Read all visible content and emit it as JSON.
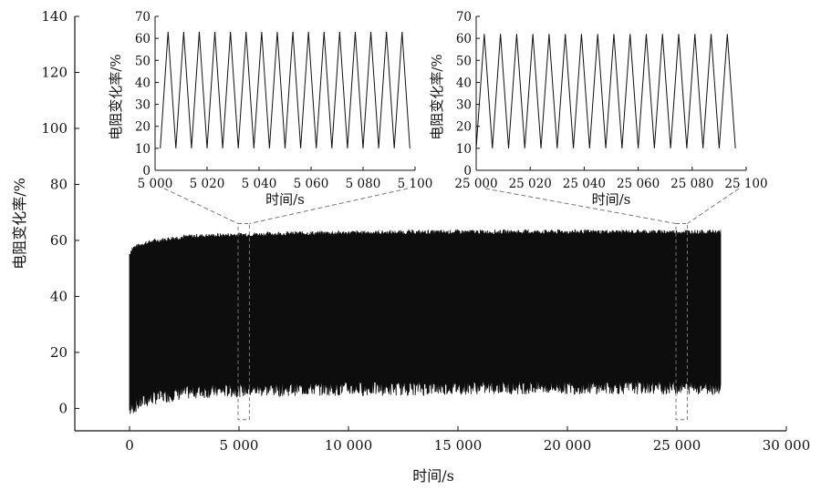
{
  "chart_data": [
    {
      "type": "line",
      "name": "main",
      "xlabel": "时间/s",
      "ylabel": "电阻变化率/%",
      "xlim": [
        -2500,
        30000
      ],
      "ylim": [
        -8,
        140
      ],
      "xticks": [
        0,
        5000,
        10000,
        15000,
        20000,
        25000,
        30000
      ],
      "xtick_labels": [
        "0",
        "5 000",
        "10 000",
        "15 000",
        "20 000",
        "25 000",
        "30 000"
      ],
      "yticks": [
        0,
        20,
        40,
        60,
        80,
        100,
        120,
        140
      ],
      "ytick_labels": [
        "0",
        "20",
        "40",
        "60",
        "80",
        "100",
        "120",
        "140"
      ],
      "grid": false,
      "series": [
        {
          "description": "dense cyclic resistance-change signal, upper/lower envelope",
          "x": [
            0,
            100,
            500,
            1000,
            2000,
            3000,
            5000,
            8000,
            12000,
            16000,
            20000,
            24000,
            27000
          ],
          "upper": [
            55,
            57,
            58.5,
            59.5,
            60.8,
            61.5,
            62,
            62.5,
            62.8,
            63,
            63,
            63,
            63
          ],
          "lower": [
            0,
            1,
            3,
            4.5,
            6,
            7,
            7.5,
            8,
            8,
            8.5,
            8.5,
            8.5,
            8.5
          ]
        }
      ],
      "zoom_windows": [
        {
          "x0": 5000,
          "x1": 5100,
          "inset": 0
        },
        {
          "x0": 25000,
          "x1": 25100,
          "inset": 1
        }
      ]
    },
    {
      "type": "line",
      "name": "inset-1",
      "xlabel": "时间/s",
      "ylabel": "电阻变化率/%",
      "xlim": [
        5000,
        5100
      ],
      "ylim": [
        0,
        70
      ],
      "xticks": [
        5000,
        5020,
        5040,
        5060,
        5080,
        5100
      ],
      "xtick_labels": [
        "5 000",
        "5 020",
        "5 040",
        "5 060",
        "5 080",
        "5 100"
      ],
      "yticks": [
        0,
        10,
        20,
        30,
        40,
        50,
        60,
        70
      ],
      "ytick_labels": [
        "0",
        "10",
        "20",
        "30",
        "40",
        "50",
        "60",
        "70"
      ],
      "series": [
        {
          "description": "triangular wave, 16 peaks",
          "x": [
            5002,
            5005,
            5008,
            5011,
            5014,
            5017,
            5020,
            5023,
            5026,
            5029,
            5032,
            5035,
            5038,
            5041,
            5044,
            5047,
            5050,
            5053,
            5056,
            5059,
            5062,
            5065,
            5068,
            5071,
            5074,
            5077,
            5080,
            5083,
            5086,
            5089,
            5092,
            5095,
            5098
          ],
          "y": [
            10,
            63,
            10,
            63,
            10,
            63,
            10,
            63,
            10,
            63,
            10,
            63,
            10,
            63,
            10,
            63,
            10,
            63,
            10,
            63,
            10,
            63,
            10,
            63,
            10,
            63,
            10,
            63,
            10,
            63,
            10,
            63,
            10
          ]
        }
      ]
    },
    {
      "type": "line",
      "name": "inset-2",
      "xlabel": "时间/s",
      "ylabel": "电阻变化率/%",
      "xlim": [
        25000,
        25100
      ],
      "ylim": [
        0,
        70
      ],
      "xticks": [
        25000,
        25020,
        25040,
        25060,
        25080,
        25100
      ],
      "xtick_labels": [
        "25 000",
        "25 020",
        "25 040",
        "25 060",
        "25 080",
        "25 100"
      ],
      "yticks": [
        0,
        10,
        20,
        30,
        40,
        50,
        60,
        70
      ],
      "ytick_labels": [
        "0",
        "10",
        "20",
        "30",
        "40",
        "50",
        "60",
        "70"
      ],
      "series": [
        {
          "description": "triangular wave, 16 peaks",
          "x": [
            25000,
            25003,
            25006,
            25009,
            25012,
            25015,
            25018,
            25021,
            25024,
            25027,
            25030,
            25033,
            25036,
            25039,
            25042,
            25045,
            25048,
            25051,
            25054,
            25057,
            25060,
            25063,
            25066,
            25069,
            25072,
            25075,
            25078,
            25081,
            25084,
            25087,
            25090,
            25093,
            25096
          ],
          "y": [
            10,
            62,
            10,
            62,
            10,
            62,
            10,
            62,
            10,
            62,
            10,
            62,
            10,
            62,
            10,
            62,
            10,
            62,
            10,
            62,
            10,
            62,
            10,
            62,
            10,
            62,
            10,
            62,
            10,
            62,
            10,
            62,
            10
          ]
        }
      ]
    }
  ]
}
